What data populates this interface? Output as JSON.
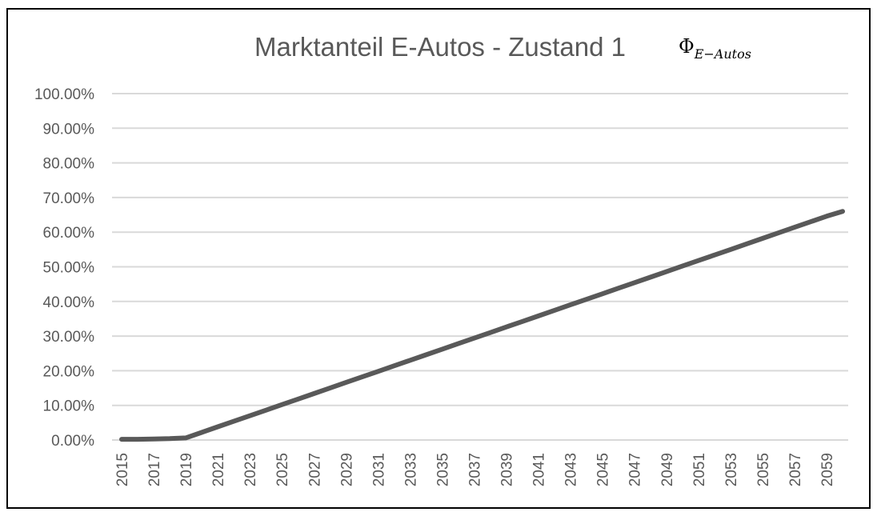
{
  "colors": {
    "line": "#595959",
    "grid": "#d9d9d9",
    "text": "#595959"
  },
  "chart_data": {
    "type": "line",
    "title": "Marktanteil E-Autos - Zustand 1",
    "formula_symbol": "Φ",
    "formula_subscript": "E−Autos",
    "xlabel": "",
    "ylabel": "",
    "ylim": [
      0,
      1
    ],
    "y_tick_labels": [
      "0.00%",
      "10.00%",
      "20.00%",
      "30.00%",
      "40.00%",
      "50.00%",
      "60.00%",
      "70.00%",
      "80.00%",
      "90.00%",
      "100.00%"
    ],
    "x_tick_labels": [
      "2015",
      "2017",
      "2019",
      "2021",
      "2023",
      "2025",
      "2027",
      "2029",
      "2031",
      "2033",
      "2035",
      "2037",
      "2039",
      "2041",
      "2043",
      "2045",
      "2047",
      "2049",
      "2051",
      "2053",
      "2055",
      "2057",
      "2059"
    ],
    "grid": true,
    "legend": "none",
    "series": [
      {
        "x": [
          2015,
          2016,
          2017,
          2018,
          2019,
          2020,
          2021,
          2022,
          2023,
          2024,
          2025,
          2026,
          2027,
          2028,
          2029,
          2030,
          2031,
          2032,
          2033,
          2034,
          2035,
          2036,
          2037,
          2038,
          2039,
          2040,
          2041,
          2042,
          2043,
          2044,
          2045,
          2046,
          2047,
          2048,
          2049,
          2050,
          2051,
          2052,
          2053,
          2054,
          2055,
          2056,
          2057,
          2058,
          2059,
          2060
        ],
        "values": [
          0.002,
          0.002,
          0.003,
          0.004,
          0.006,
          0.022,
          0.038,
          0.054,
          0.07,
          0.086,
          0.102,
          0.118,
          0.134,
          0.15,
          0.166,
          0.182,
          0.198,
          0.214,
          0.23,
          0.246,
          0.262,
          0.278,
          0.294,
          0.31,
          0.326,
          0.342,
          0.358,
          0.374,
          0.39,
          0.406,
          0.422,
          0.438,
          0.454,
          0.47,
          0.486,
          0.502,
          0.518,
          0.534,
          0.55,
          0.566,
          0.582,
          0.598,
          0.614,
          0.63,
          0.646,
          0.66
        ]
      }
    ]
  }
}
